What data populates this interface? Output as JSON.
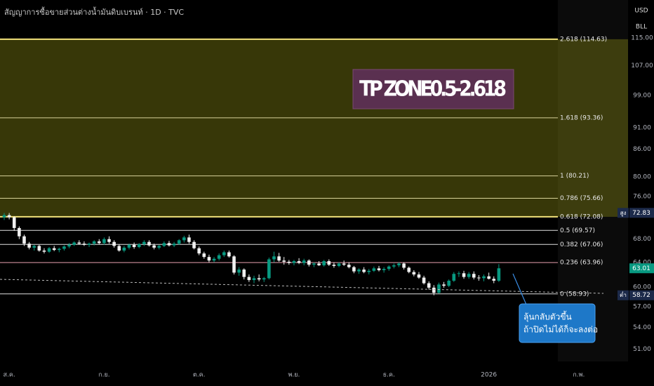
{
  "chart_data": {
    "type": "candlestick",
    "title": "สัญญาการซื้อขายส่วนต่างน้ำมันดิบเบรนท์ · 1D · TVC",
    "currency_buttons": [
      "USD",
      "BLL"
    ],
    "log_scale": true,
    "ylim": [
      49.4,
      127
    ],
    "yticks": [
      {
        "value": 115,
        "label": "115.00"
      },
      {
        "value": 107,
        "label": "107.00"
      },
      {
        "value": 99,
        "label": "99.00"
      },
      {
        "value": 91,
        "label": "91.00"
      },
      {
        "value": 86,
        "label": "86.00"
      },
      {
        "value": 80,
        "label": "80.00"
      },
      {
        "value": 76,
        "label": "76.00"
      },
      {
        "value": 68,
        "label": "68.00"
      },
      {
        "value": 64,
        "label": "64.00"
      },
      {
        "value": 60,
        "label": "60.00"
      },
      {
        "value": 57,
        "label": "57.00"
      },
      {
        "value": 54,
        "label": "54.00"
      },
      {
        "value": 51,
        "label": "51.00"
      }
    ],
    "up_color": "#089981",
    "down_color": "#f0f0f0",
    "categories": [
      null,
      "ส.ค.",
      null,
      null,
      null,
      null,
      null,
      null,
      null,
      null,
      null,
      null,
      null,
      null,
      null,
      null,
      null,
      null,
      null,
      null,
      "ก.ย.",
      null,
      null,
      null,
      null,
      null,
      null,
      null,
      null,
      null,
      null,
      null,
      null,
      null,
      null,
      null,
      null,
      null,
      null,
      "ต.ค.",
      null,
      null,
      null,
      null,
      null,
      null,
      null,
      null,
      null,
      null,
      null,
      null,
      null,
      null,
      null,
      null,
      null,
      null,
      "พ.ย.",
      null,
      null,
      null,
      null,
      null,
      null,
      null,
      null,
      null,
      null,
      null,
      null,
      null,
      null,
      null,
      null,
      null,
      null,
      "ธ.ค.",
      null,
      null,
      null,
      null,
      null,
      null,
      null,
      null,
      null,
      null,
      null,
      null,
      null,
      null,
      null,
      null,
      null,
      null,
      null,
      "2026",
      null,
      null,
      null,
      null,
      null,
      null,
      null,
      null,
      null,
      null,
      null,
      null,
      null,
      null,
      null,
      null,
      null,
      "ก.พ."
    ],
    "candles": [
      [
        72,
        72.8,
        71.5,
        72.4
      ],
      [
        72.4,
        72.8,
        71.6,
        72
      ],
      [
        72,
        72.2,
        69.5,
        70
      ],
      [
        70,
        70.3,
        68,
        68.5
      ],
      [
        68.5,
        68.8,
        66.8,
        67.2
      ],
      [
        67.2,
        67.5,
        66.2,
        66.5
      ],
      [
        66.5,
        67,
        66,
        66.8
      ],
      [
        66.8,
        67,
        65.8,
        66
      ],
      [
        66,
        66.4,
        65.5,
        65.8
      ],
      [
        65.8,
        66.6,
        65.6,
        66.4
      ],
      [
        66.4,
        66.8,
        65.9,
        66.1
      ],
      [
        66.1,
        66.5,
        65.7,
        66.3
      ],
      [
        66.3,
        66.9,
        66,
        66.7
      ],
      [
        66.7,
        67.3,
        66.4,
        67
      ],
      [
        67,
        67.6,
        66.8,
        67.4
      ],
      [
        67.4,
        67.8,
        67,
        67.2
      ],
      [
        67.2,
        67.6,
        66.8,
        67
      ],
      [
        67,
        67.4,
        66.6,
        67.2
      ],
      [
        67.2,
        67.8,
        66.9,
        67.6
      ],
      [
        67.6,
        68,
        67.1,
        67.3
      ],
      [
        67.3,
        68.3,
        67,
        68
      ],
      [
        68,
        68.5,
        67.2,
        67.5
      ],
      [
        67.5,
        67.8,
        66.5,
        66.8
      ],
      [
        66.8,
        67.1,
        65.8,
        66
      ],
      [
        66,
        66.8,
        65.7,
        66.5
      ],
      [
        66.5,
        67.2,
        66.2,
        67
      ],
      [
        67,
        67.4,
        66.3,
        66.6
      ],
      [
        66.6,
        67.3,
        66.4,
        67.1
      ],
      [
        67.1,
        67.8,
        66.8,
        67.5
      ],
      [
        67.5,
        67.8,
        66.7,
        66.9
      ],
      [
        66.9,
        67.2,
        66.2,
        66.5
      ],
      [
        66.5,
        67,
        66.2,
        66.8
      ],
      [
        66.8,
        67.6,
        66.6,
        67.3
      ],
      [
        67.3,
        67.7,
        66.7,
        66.9
      ],
      [
        66.9,
        67.5,
        66.6,
        67.2
      ],
      [
        67.2,
        68,
        67,
        67.8
      ],
      [
        67.8,
        68.6,
        67.4,
        68.3
      ],
      [
        68.3,
        68.8,
        67.2,
        67.5
      ],
      [
        67.5,
        67.8,
        66.2,
        66.4
      ],
      [
        66.4,
        66.7,
        65.2,
        65.5
      ],
      [
        65.5,
        65.8,
        64.6,
        64.9
      ],
      [
        64.9,
        65.3,
        64,
        64.3
      ],
      [
        64.3,
        64.9,
        64,
        64.6
      ],
      [
        64.6,
        65.5,
        64.3,
        65.2
      ],
      [
        65.2,
        66,
        64.9,
        65.7
      ],
      [
        65.7,
        66,
        64.8,
        65
      ],
      [
        65,
        65.2,
        62,
        62.3
      ],
      [
        62.3,
        63.2,
        61.8,
        62.8
      ],
      [
        62.8,
        63,
        61.2,
        61.6
      ],
      [
        61.6,
        62,
        60.8,
        61.1
      ],
      [
        61.1,
        61.8,
        60.6,
        61.4
      ],
      [
        61.4,
        62,
        60.9,
        61.2
      ],
      [
        61.2,
        61.6,
        60.8,
        61.4
      ],
      [
        61.4,
        64.8,
        61.2,
        64.5
      ],
      [
        64.5,
        65.8,
        64,
        65
      ],
      [
        65,
        65.6,
        64.1,
        64.3
      ],
      [
        64.3,
        64.9,
        63.6,
        64.1
      ],
      [
        64.1,
        64.4,
        63.6,
        63.9
      ],
      [
        63.9,
        64.4,
        63.5,
        64.2
      ],
      [
        64.2,
        64.7,
        63.7,
        63.9
      ],
      [
        63.9,
        64.6,
        63.5,
        64.3
      ],
      [
        64.3,
        64.5,
        63.3,
        63.6
      ],
      [
        63.6,
        64,
        63.2,
        63.8
      ],
      [
        63.8,
        64.2,
        63.4,
        63.5
      ],
      [
        63.5,
        64.4,
        63.3,
        64.2
      ],
      [
        64.2,
        64.5,
        63.4,
        63.6
      ],
      [
        63.6,
        64,
        63.1,
        63.4
      ],
      [
        63.4,
        64,
        63.2,
        63.8
      ],
      [
        63.8,
        64.3,
        63.4,
        63.6
      ],
      [
        63.6,
        64,
        63,
        63.2
      ],
      [
        63.2,
        63.4,
        62.2,
        62.5
      ],
      [
        62.5,
        63,
        62.1,
        62.8
      ],
      [
        62.8,
        63.2,
        62.2,
        62.4
      ],
      [
        62.4,
        62.9,
        62,
        62.6
      ],
      [
        62.6,
        63.3,
        62.4,
        63
      ],
      [
        63,
        63.4,
        62.5,
        62.7
      ],
      [
        62.7,
        63.2,
        62.3,
        62.9
      ],
      [
        62.9,
        63.5,
        62.6,
        63.3
      ],
      [
        63.3,
        63.8,
        63,
        63.5
      ],
      [
        63.5,
        64,
        63.2,
        63.8
      ],
      [
        63.8,
        64,
        62.8,
        63.1
      ],
      [
        63.1,
        63.3,
        62.2,
        62.4
      ],
      [
        62.4,
        62.7,
        61.7,
        62
      ],
      [
        62,
        62.4,
        61.3,
        61.5
      ],
      [
        61.5,
        61.8,
        60.4,
        60.6
      ],
      [
        60.6,
        60.9,
        59.6,
        59.9
      ],
      [
        59.9,
        60.3,
        58.72,
        59.1
      ],
      [
        59.1,
        60.7,
        59,
        60.4
      ],
      [
        60.4,
        60.8,
        59.9,
        60.2
      ],
      [
        60.2,
        61.2,
        60,
        61
      ],
      [
        61,
        62.4,
        60.8,
        62.1
      ],
      [
        62.1,
        62.5,
        61.6,
        62.2
      ],
      [
        62.2,
        62.6,
        61.3,
        61.6
      ],
      [
        61.6,
        62.4,
        61.3,
        62.1
      ],
      [
        62.1,
        62.5,
        61.2,
        61.5
      ],
      [
        61.5,
        61.9,
        61,
        61.4
      ],
      [
        61.4,
        62,
        60.9,
        61.7
      ],
      [
        61.7,
        62.3,
        61.2,
        61.3
      ],
      [
        61.3,
        61.7,
        60.6,
        61
      ],
      [
        61,
        63.7,
        60.8,
        63.01
      ],
      null,
      null,
      null,
      null,
      null,
      null,
      null,
      null,
      null,
      null,
      null,
      null,
      null,
      null,
      null
    ],
    "fib_levels": [
      {
        "value": 114.63,
        "label": "2.618 (114.63)",
        "color": "#f2e27a"
      },
      {
        "value": 93.36,
        "label": "1.618 (93.36)",
        "color": "#d8d39a"
      },
      {
        "value": 80.21,
        "label": "1 (80.21)",
        "color": "#d8d39a"
      },
      {
        "value": 75.66,
        "label": "0.786 (75.66)",
        "color": "#d8d39a"
      },
      {
        "value": 72.08,
        "label": "0.618 (72.08)",
        "color": "#f2e27a"
      },
      {
        "value": 69.57,
        "label": "0.5 (69.57)",
        "color": "#e0e0e0"
      },
      {
        "value": 67.06,
        "label": "0.382 (67.06)",
        "color": "#e0e0e0"
      },
      {
        "value": 63.96,
        "label": "0.236 (63.96)",
        "color": "#e8a0b0"
      },
      {
        "value": 58.93,
        "label": "0 (58.93)",
        "color": "#e0e0e0"
      }
    ],
    "zone_color": "rgba(130,130,20,0.42)",
    "price_badges": [
      {
        "tag": "สูง",
        "value": 72.83,
        "color": "#1c2a4a"
      },
      {
        "value": 63.01,
        "color": "#089981"
      },
      {
        "tag": "ต่ำ",
        "value": 58.72,
        "color": "#1c2a4a"
      }
    ],
    "zone_label": "TP ZONE0.5-2.618",
    "callout": [
      "ลุ้นกลับตัวขึ้น",
      "ถ้าปิดไม่ได้ก็จะลงต่อ"
    ]
  }
}
